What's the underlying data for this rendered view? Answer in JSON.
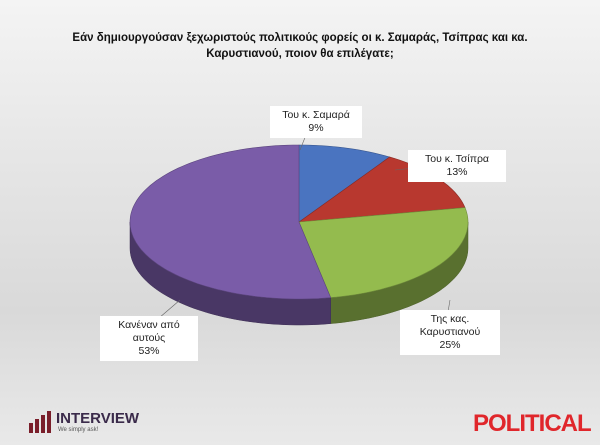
{
  "chart_data": {
    "type": "pie",
    "title": "Εάν δημιουργούσαν ξεχωριστούς πολιτικούς φορείς οι κ. Σαμαράς, Τσίπρας και κα. Καρυστιανού, ποιον θα επιλέγατε;",
    "categories": [
      "Του κ. Σαμαρά",
      "Του κ. Τσίπρα",
      "Της κας. Καρυστιανού",
      "Κανέναν από αυτούς"
    ],
    "values": [
      9,
      13,
      25,
      53
    ],
    "value_labels": [
      "9%",
      "13%",
      "25%",
      "53%"
    ],
    "colors": [
      "#4a74c0",
      "#b8382f",
      "#94bb4e",
      "#7a5ca8"
    ]
  },
  "branding": {
    "interview": "INTERVIEW",
    "slogan": "We simply ask!",
    "political": "POLITICAL"
  }
}
